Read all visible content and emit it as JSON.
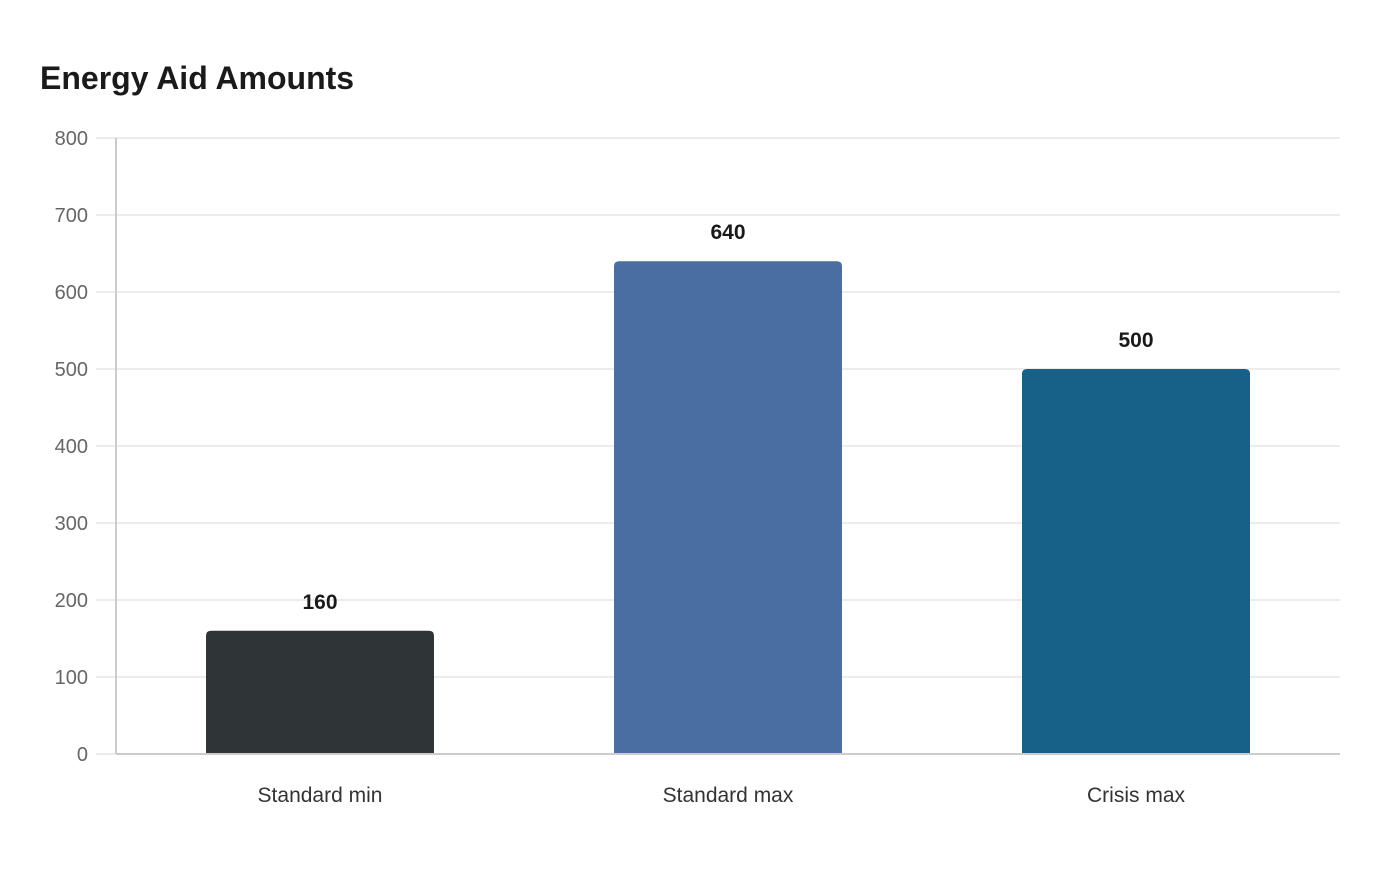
{
  "chart_data": {
    "type": "bar",
    "title": "Energy Aid Amounts",
    "categories": [
      "Standard min",
      "Standard max",
      "Crisis max"
    ],
    "values": [
      160,
      640,
      500
    ],
    "colors": [
      "#2f3437",
      "#4a6ea1",
      "#176088"
    ],
    "xlabel": "",
    "ylabel": "",
    "ylim": [
      0,
      800
    ],
    "yticks": [
      0,
      100,
      200,
      300,
      400,
      500,
      600,
      700,
      800
    ],
    "grid": true,
    "legend": "none",
    "data_labels": true
  }
}
